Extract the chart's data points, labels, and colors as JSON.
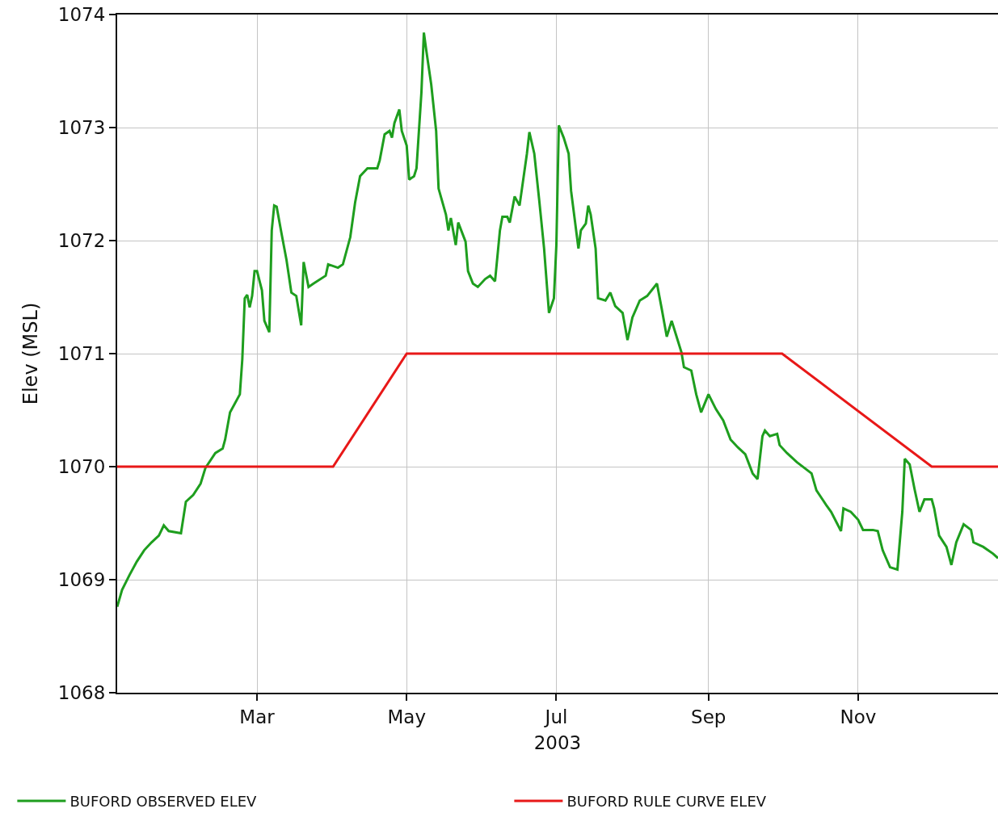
{
  "chart_data": {
    "type": "line",
    "xlabel": "2003",
    "ylabel": "Elev (MSL)",
    "xlim": [
      "2003-01-03",
      "2003-12-28"
    ],
    "xticks": [
      {
        "value": "2003-03-01",
        "label": "Mar"
      },
      {
        "value": "2003-05-01",
        "label": "May"
      },
      {
        "value": "2003-07-01",
        "label": "Jul"
      },
      {
        "value": "2003-09-01",
        "label": "Sep"
      },
      {
        "value": "2003-11-01",
        "label": "Nov"
      }
    ],
    "ylim": [
      1068,
      1074
    ],
    "yticks": [
      1068,
      1069,
      1070,
      1071,
      1072,
      1073,
      1074
    ],
    "grid": true,
    "legend": "bottom",
    "marker": "none",
    "line_style": "solid",
    "series": [
      {
        "name": "BUFORD OBSERVED ELEV",
        "color": "#1e9e1e",
        "x": [
          "2003-01-03",
          "2003-01-05",
          "2003-01-08",
          "2003-01-11",
          "2003-01-14",
          "2003-01-17",
          "2003-01-20",
          "2003-01-22",
          "2003-01-24",
          "2003-01-29",
          "2003-01-31",
          "2003-02-03",
          "2003-02-06",
          "2003-02-08",
          "2003-02-12",
          "2003-02-15",
          "2003-02-16",
          "2003-02-18",
          "2003-02-22",
          "2003-02-23",
          "2003-02-24",
          "2003-02-25",
          "2003-02-26",
          "2003-02-27",
          "2003-02-28",
          "2003-03-01",
          "2003-03-03",
          "2003-03-04",
          "2003-03-06",
          "2003-03-07",
          "2003-03-08",
          "2003-03-09",
          "2003-03-11",
          "2003-03-13",
          "2003-03-15",
          "2003-03-17",
          "2003-03-19",
          "2003-03-20",
          "2003-03-22",
          "2003-03-24",
          "2003-03-29",
          "2003-03-30",
          "2003-04-03",
          "2003-04-05",
          "2003-04-08",
          "2003-04-10",
          "2003-04-12",
          "2003-04-15",
          "2003-04-19",
          "2003-04-20",
          "2003-04-22",
          "2003-04-24",
          "2003-04-25",
          "2003-04-26",
          "2003-04-28",
          "2003-04-29",
          "2003-05-01",
          "2003-05-02",
          "2003-05-04",
          "2003-05-05",
          "2003-05-07",
          "2003-05-08",
          "2003-05-09",
          "2003-05-11",
          "2003-05-13",
          "2003-05-14",
          "2003-05-17",
          "2003-05-18",
          "2003-05-19",
          "2003-05-21",
          "2003-05-22",
          "2003-05-25",
          "2003-05-26",
          "2003-05-28",
          "2003-05-30",
          "2003-06-02",
          "2003-06-04",
          "2003-06-06",
          "2003-06-08",
          "2003-06-09",
          "2003-06-11",
          "2003-06-12",
          "2003-06-14",
          "2003-06-16",
          "2003-06-19",
          "2003-06-20",
          "2003-06-22",
          "2003-06-24",
          "2003-06-26",
          "2003-06-28",
          "2003-06-30",
          "2003-07-01",
          "2003-07-02",
          "2003-07-04",
          "2003-07-06",
          "2003-07-07",
          "2003-07-10",
          "2003-07-11",
          "2003-07-13",
          "2003-07-14",
          "2003-07-15",
          "2003-07-17",
          "2003-07-18",
          "2003-07-21",
          "2003-07-23",
          "2003-07-25",
          "2003-07-28",
          "2003-07-30",
          "2003-08-01",
          "2003-08-04",
          "2003-08-07",
          "2003-08-11",
          "2003-08-13",
          "2003-08-15",
          "2003-08-17",
          "2003-08-19",
          "2003-08-21",
          "2003-08-22",
          "2003-08-25",
          "2003-08-27",
          "2003-08-29",
          "2003-09-01",
          "2003-09-04",
          "2003-09-07",
          "2003-09-10",
          "2003-09-13",
          "2003-09-16",
          "2003-09-19",
          "2003-09-21",
          "2003-09-23",
          "2003-09-24",
          "2003-09-26",
          "2003-09-29",
          "2003-09-30",
          "2003-10-03",
          "2003-10-07",
          "2003-10-13",
          "2003-10-15",
          "2003-10-19",
          "2003-10-21",
          "2003-10-25",
          "2003-10-26",
          "2003-10-29",
          "2003-11-01",
          "2003-11-03",
          "2003-11-07",
          "2003-11-09",
          "2003-11-11",
          "2003-11-14",
          "2003-11-17",
          "2003-11-19",
          "2003-11-20",
          "2003-11-22",
          "2003-11-24",
          "2003-11-26",
          "2003-11-28",
          "2003-12-01",
          "2003-12-02",
          "2003-12-04",
          "2003-12-07",
          "2003-12-09",
          "2003-12-11",
          "2003-12-14",
          "2003-12-17",
          "2003-12-18",
          "2003-12-22",
          "2003-12-26",
          "2003-12-28"
        ],
        "values": [
          1068.76,
          1068.91,
          1069.04,
          1069.16,
          1069.26,
          1069.33,
          1069.39,
          1069.48,
          1069.43,
          1069.41,
          1069.69,
          1069.75,
          1069.85,
          1069.99,
          1070.12,
          1070.16,
          1070.24,
          1070.48,
          1070.64,
          1070.95,
          1071.49,
          1071.52,
          1071.41,
          1071.51,
          1071.73,
          1071.73,
          1071.56,
          1071.29,
          1071.19,
          1072.09,
          1072.31,
          1072.3,
          1072.06,
          1071.83,
          1071.54,
          1071.51,
          1071.25,
          1071.81,
          1071.59,
          1071.62,
          1071.69,
          1071.79,
          1071.76,
          1071.79,
          1072.03,
          1072.34,
          1072.57,
          1072.64,
          1072.64,
          1072.71,
          1072.94,
          1072.97,
          1072.91,
          1073.04,
          1073.16,
          1072.97,
          1072.84,
          1072.54,
          1072.57,
          1072.64,
          1073.31,
          1073.84,
          1073.68,
          1073.38,
          1072.97,
          1072.46,
          1072.23,
          1072.09,
          1072.2,
          1071.96,
          1072.16,
          1071.99,
          1071.73,
          1071.62,
          1071.59,
          1071.66,
          1071.69,
          1071.64,
          1072.09,
          1072.21,
          1072.21,
          1072.16,
          1072.39,
          1072.31,
          1072.77,
          1072.96,
          1072.77,
          1072.36,
          1071.93,
          1071.36,
          1071.49,
          1071.96,
          1073.02,
          1072.91,
          1072.77,
          1072.44,
          1071.93,
          1072.09,
          1072.15,
          1072.31,
          1072.23,
          1071.93,
          1071.49,
          1071.47,
          1071.54,
          1071.42,
          1071.36,
          1071.12,
          1071.32,
          1071.47,
          1071.51,
          1071.62,
          1071.39,
          1071.15,
          1071.29,
          1071.15,
          1071.01,
          1070.88,
          1070.85,
          1070.64,
          1070.48,
          1070.64,
          1070.51,
          1070.41,
          1070.24,
          1070.17,
          1070.11,
          1069.94,
          1069.89,
          1070.27,
          1070.32,
          1070.27,
          1070.29,
          1070.19,
          1070.12,
          1070.04,
          1069.94,
          1069.79,
          1069.66,
          1069.6,
          1069.43,
          1069.63,
          1069.6,
          1069.53,
          1069.44,
          1069.44,
          1069.43,
          1069.26,
          1069.11,
          1069.09,
          1069.6,
          1070.07,
          1070.02,
          1069.8,
          1069.6,
          1069.71,
          1069.71,
          1069.63,
          1069.39,
          1069.29,
          1069.13,
          1069.33,
          1069.49,
          1069.44,
          1069.33,
          1069.29,
          1069.23,
          1069.19
        ]
      },
      {
        "name": "BUFORD RULE CURVE ELEV",
        "color": "#e81818",
        "x": [
          "2003-01-03",
          "2003-04-01",
          "2003-05-01",
          "2003-10-01",
          "2003-12-01",
          "2003-12-28"
        ],
        "values": [
          1070,
          1070,
          1071,
          1071,
          1070,
          1070
        ]
      }
    ]
  }
}
